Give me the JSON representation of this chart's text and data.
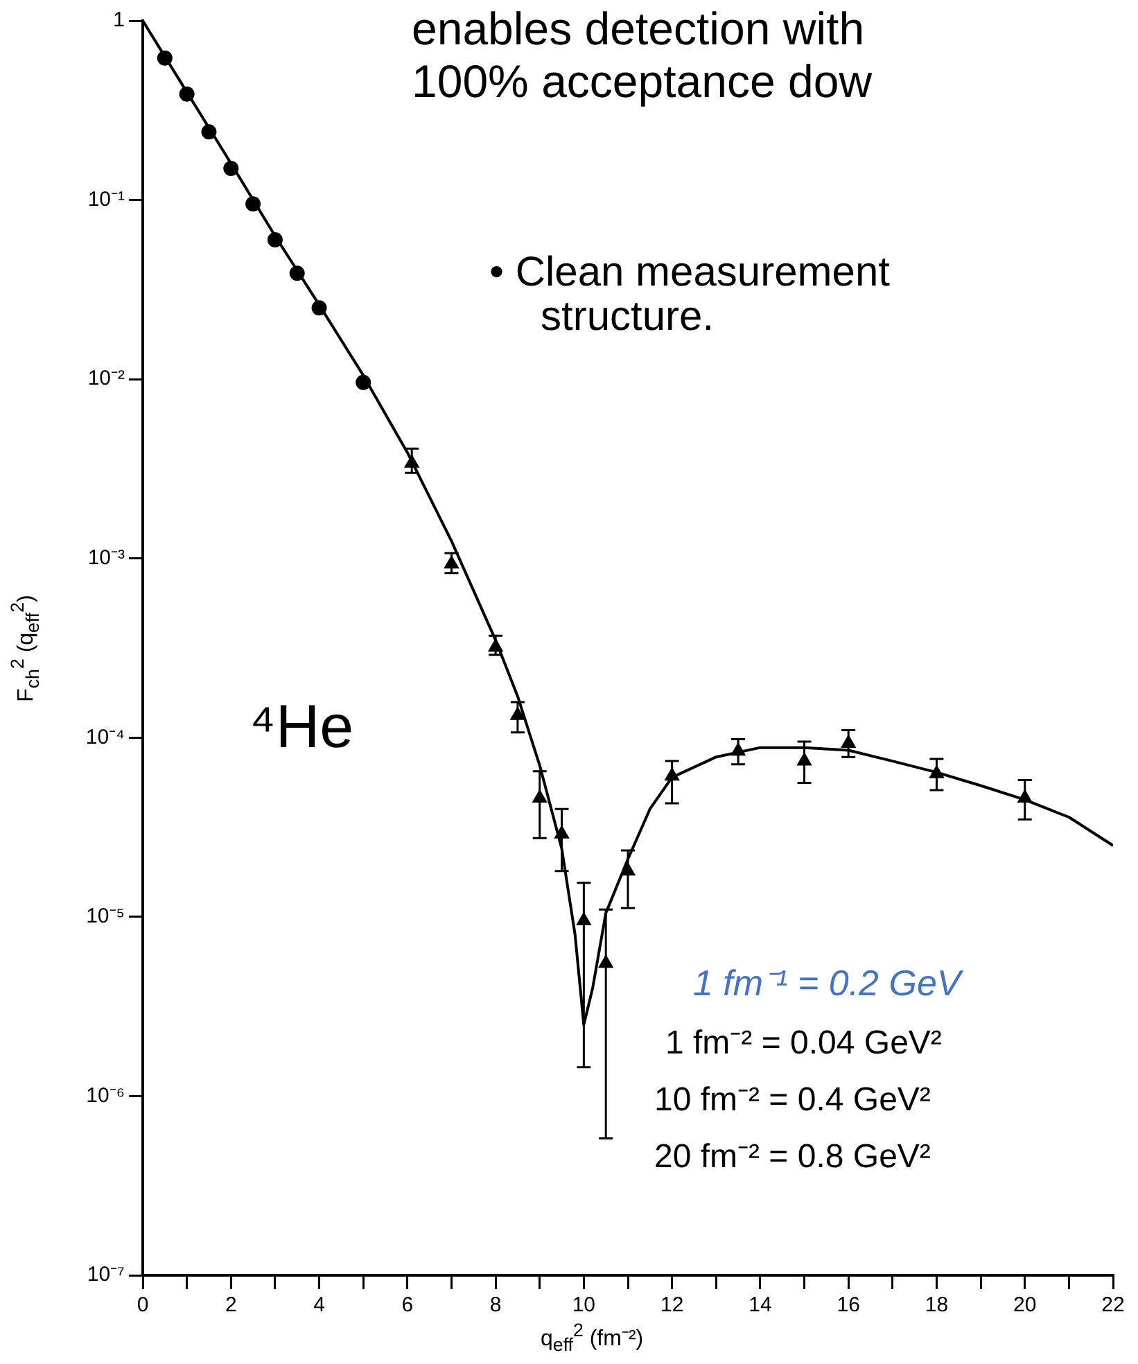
{
  "chart_data": {
    "type": "scatter",
    "xlabel": "q$_{eff}$$^{2}$ (fm⁻²)",
    "ylabel": "F$_{ch}$$^{2}$ (q$_{eff}$$^{2}$)",
    "log": "y",
    "grid": false,
    "legend": false,
    "xlim": [
      0,
      22
    ],
    "ylim": [
      1e-07,
      1
    ],
    "xticks": [
      0,
      {
        "value": 1,
        "label": null
      },
      2,
      {
        "value": 3,
        "label": null
      },
      4,
      {
        "value": 5,
        "label": null
      },
      6,
      {
        "value": 7,
        "label": null
      },
      8,
      {
        "value": 9,
        "label": null
      },
      10,
      {
        "value": 11,
        "label": null
      },
      12,
      {
        "value": 13,
        "label": null
      },
      14,
      {
        "value": 15,
        "label": null
      },
      16,
      {
        "value": 17,
        "label": null
      },
      18,
      {
        "value": 19,
        "label": null
      },
      20,
      {
        "value": 21,
        "label": null
      },
      22
    ],
    "yticks": [
      {
        "value": 1e-07,
        "label": "10⁻⁷"
      },
      {
        "value": 1e-06,
        "label": "10⁻⁶"
      },
      {
        "value": 1e-05,
        "label": "10⁻⁵"
      },
      {
        "value": 0.0001,
        "label": "10⁻⁴"
      },
      {
        "value": 0.001,
        "label": "10⁻³"
      },
      {
        "value": 0.01,
        "label": "10⁻²"
      },
      {
        "value": 0.1,
        "label": "10⁻¹"
      },
      1
    ],
    "series": [
      {
        "type": "scatter",
        "marker": "circle",
        "color": "#000000",
        "x": [
          0.5,
          1,
          1.5,
          2,
          2.5,
          3,
          3.5,
          4,
          5
        ],
        "values": [
          0.62,
          0.39,
          0.24,
          0.15,
          0.095,
          0.06,
          0.039,
          0.025,
          0.0096
        ]
      },
      {
        "type": "scatter",
        "marker": "triangle",
        "color": "#000000",
        "x": [
          6.1,
          7,
          8,
          8.5,
          9,
          9.5,
          10,
          10.5,
          11,
          12,
          13.5,
          15,
          16,
          18,
          20
        ],
        "values": [
          0.0034,
          0.00093,
          0.00032,
          0.000133,
          4.6e-05,
          2.9e-05,
          9.5e-06,
          5.5e-06,
          1.8e-05,
          6.1e-05,
          8.4e-05,
          7.4e-05,
          9.3e-05,
          6.3e-05,
          4.6e-05
        ],
        "errors": [
          [
            0.003,
            0.0041
          ],
          [
            0.00083,
            0.00107
          ],
          [
            0.00029,
            0.00037
          ],
          [
            0.000107,
            0.000158
          ],
          [
            2.75e-05,
            6.5e-05
          ],
          [
            1.8e-05,
            4e-05
          ],
          [
            1.45e-06,
            1.55e-05
          ],
          [
            5.8e-07,
            1.1e-05
          ],
          [
            1.12e-05,
            2.35e-05
          ],
          [
            4.3e-05,
            7.4e-05
          ],
          [
            7.1e-05,
            9.8e-05
          ],
          [
            5.6e-05,
            9.5e-05
          ],
          [
            7.8e-05,
            0.00011
          ],
          [
            5.1e-05,
            7.6e-05
          ],
          [
            3.5e-05,
            5.8e-05
          ]
        ]
      },
      {
        "type": "line",
        "marker": "none",
        "color": "#000000",
        "x": [
          0,
          1,
          2,
          3,
          4,
          5,
          6,
          7,
          8,
          8.5,
          9,
          9.5,
          9.8,
          10,
          10.2,
          10.5,
          11,
          11.5,
          12,
          13,
          14,
          15,
          16,
          17,
          18,
          19,
          20,
          21,
          22
        ],
        "values": [
          1,
          0.4,
          0.16,
          0.063,
          0.026,
          0.0105,
          0.0039,
          0.00125,
          0.00035,
          0.00017,
          7e-05,
          2.4e-05,
          8e-06,
          2.5e-06,
          4e-06,
          1.05e-05,
          2.1e-05,
          4e-05,
          6e-05,
          7.8e-05,
          8.8e-05,
          8.8e-05,
          8.5e-05,
          7.4e-05,
          6.4e-05,
          5.4e-05,
          4.5e-05,
          3.6e-05,
          2.5e-05
        ]
      }
    ],
    "annotations": [
      "enables detection with",
      "100% acceptance dow",
      "• Clean measurement",
      "structure.",
      "⁴He",
      "1 fm⁻¹ = 0.2 GeV",
      "1 fm⁻² = 0.04 GeV²",
      "10 fm⁻² = 0.4 GeV²",
      "20 fm⁻² = 0.8 GeV²"
    ]
  }
}
